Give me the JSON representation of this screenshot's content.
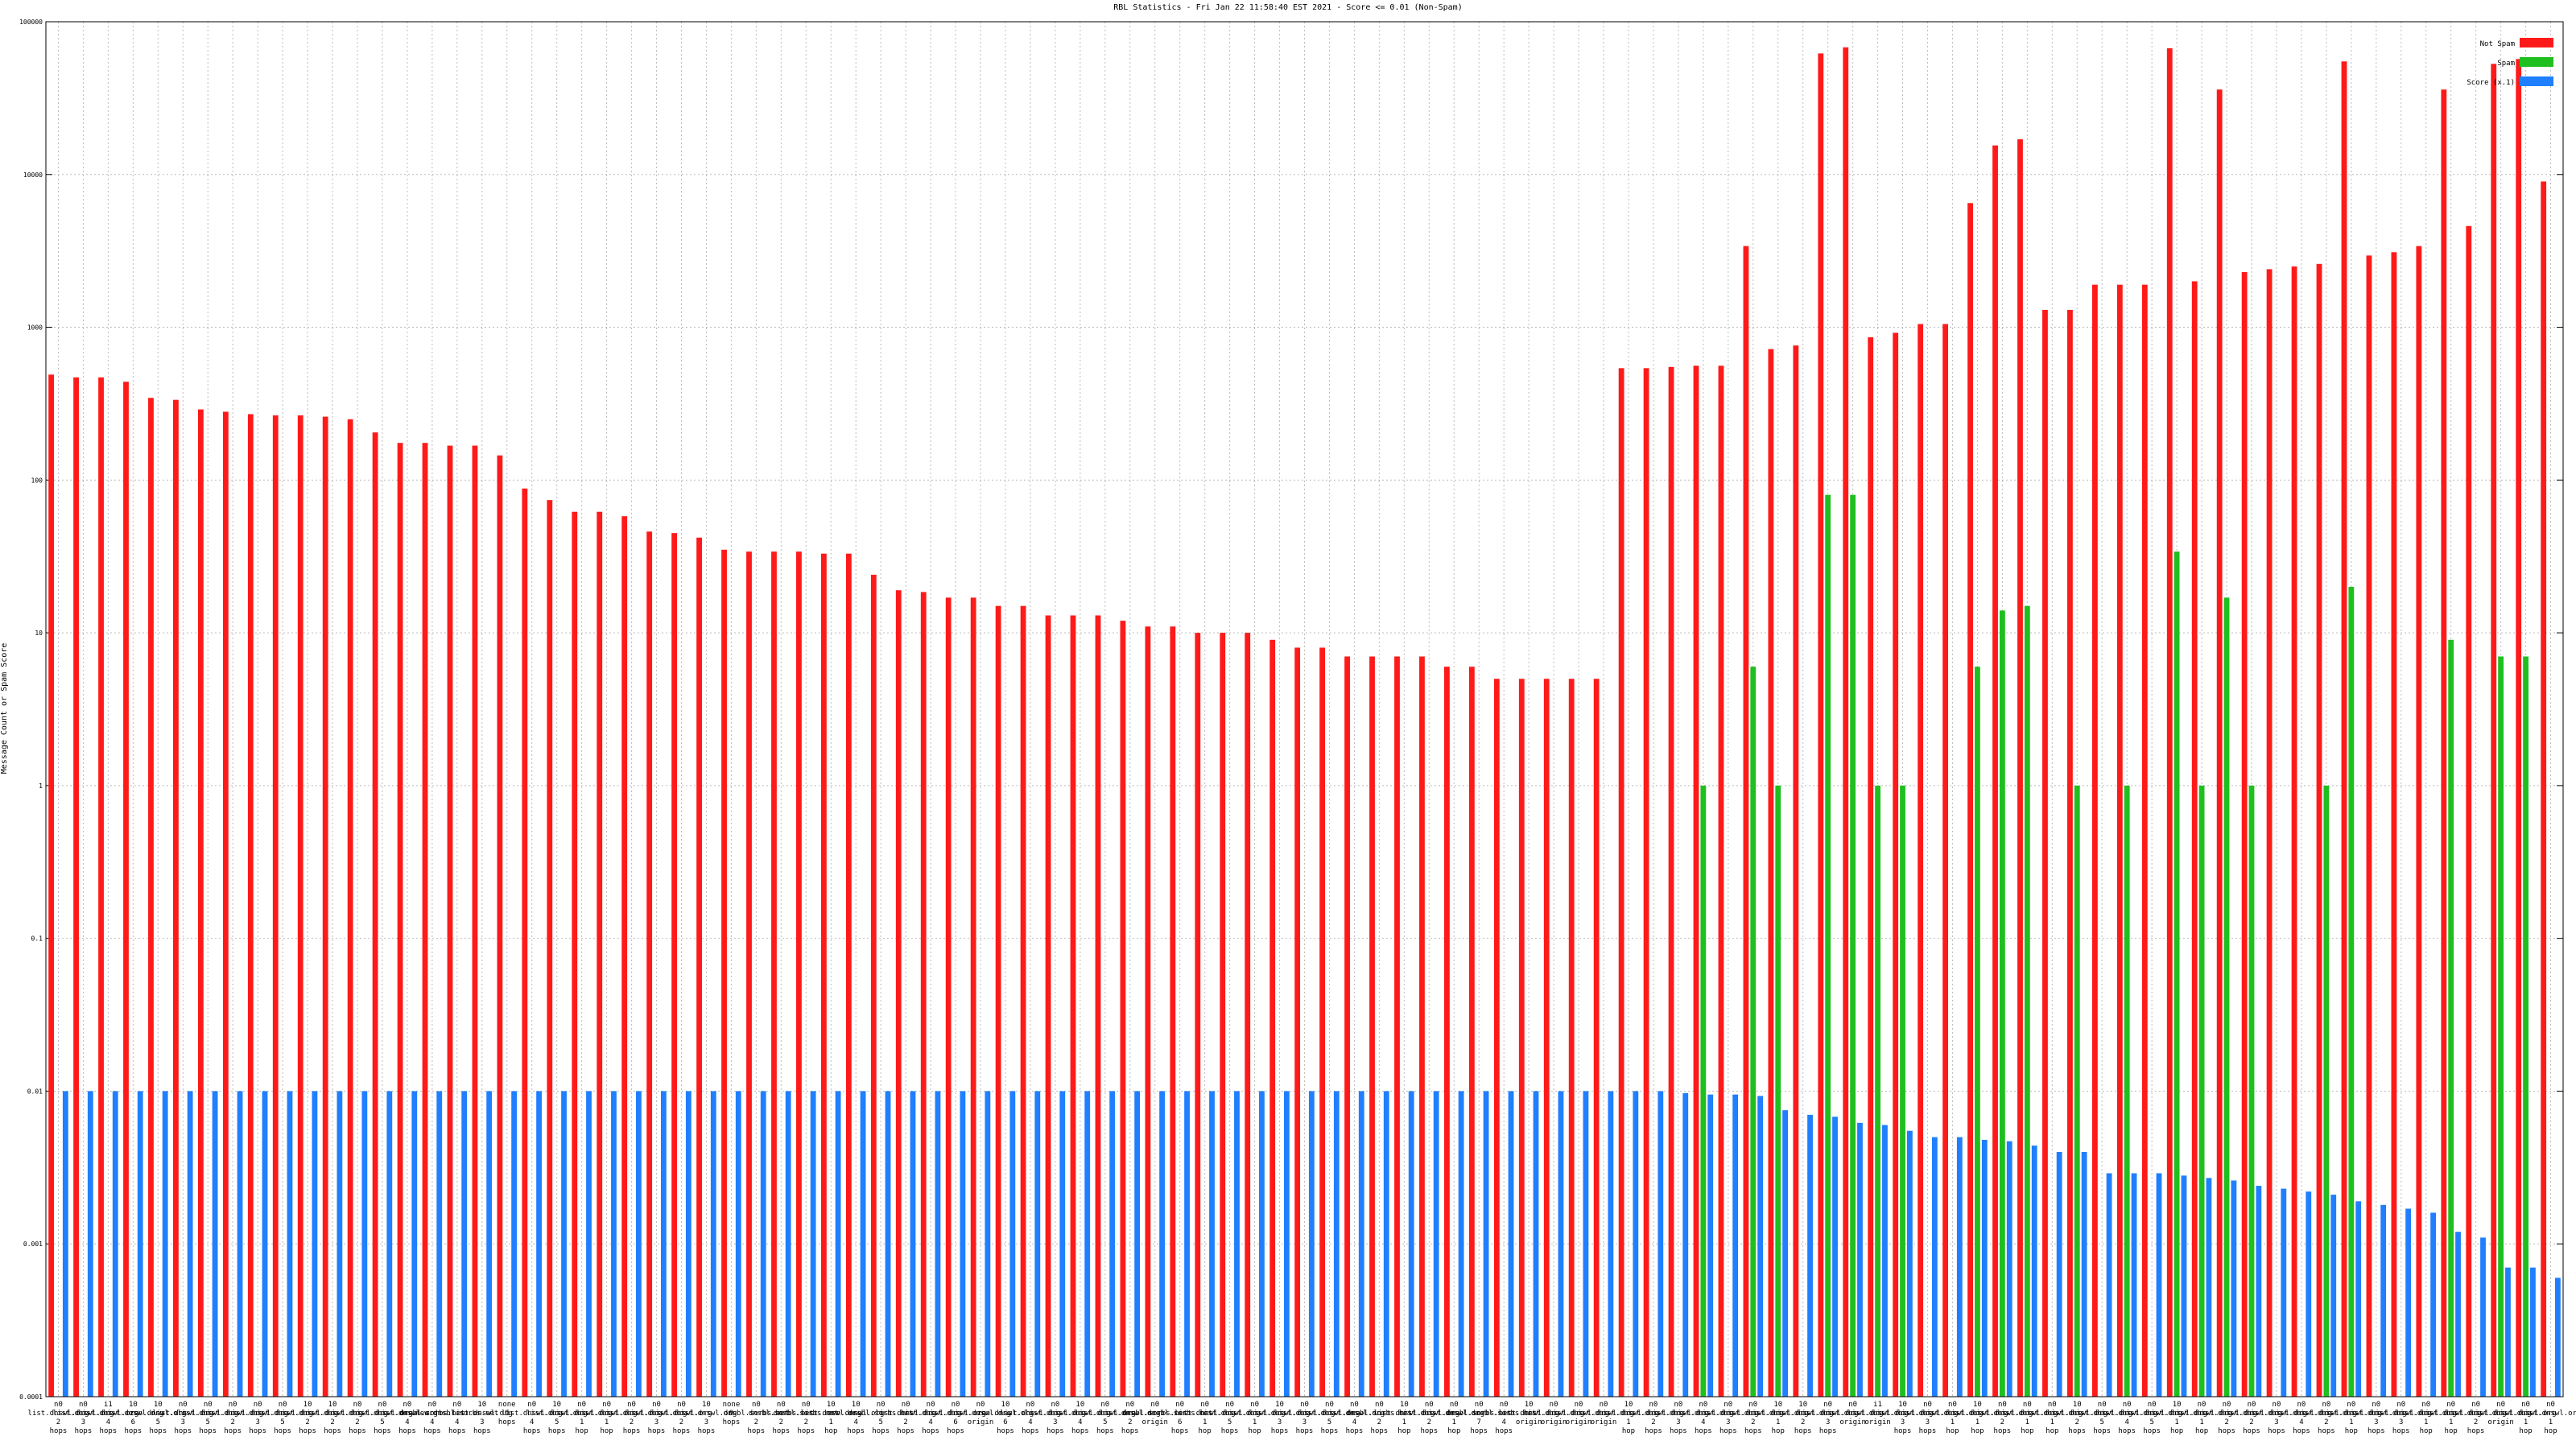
{
  "chart_data": {
    "type": "bar",
    "title": "RBL Statistics - Fri Jan 22 11:58:40 EST 2021 - Score <= 0.01 (Non-Spam)",
    "y_label": "Message Count or Spam Score",
    "log_y": true,
    "grid": true,
    "legend": "top-right",
    "ylim": [
      0.0001,
      100000
    ],
    "yticks": [
      0.0001,
      0.001,
      0.01,
      0.1,
      1,
      10,
      100,
      1000,
      10000,
      100000
    ],
    "categories": [
      "n0 list.dnswl.org 2 hops",
      "n0 list.dnswl.org 3 hops",
      "i1 list.dnswl.org 4 hops",
      "10 list.dnswl.org 6 hops",
      "10 zen.dnswl.org 5 hops",
      "n0 list.dnswl.org 3 hops",
      "n0 list.dnswl.org 5 hops",
      "n0 list.dnswl.org 2 hops",
      "n0 list.dnswl.org 3 hops",
      "n0 list.dnswl.org 5 hops",
      "10 list.dnswl.org 2 hops",
      "10 list.dnswl.org 2 hops",
      "n0 list.dnswl.org 2 hops",
      "n0 list.dnswl.org 5 hops",
      "n0 list.dnswl.org 4 hops",
      "n0 dnsbl.sorbs.net 4 hops",
      "n0 new.dnsbl.sorbs.net 4 hops",
      "10 list.dnswl.org 3 hops",
      "none 9 hops",
      "n0 list.dnswl.org 4 hops",
      "10 list.dnswl.org 5 hops",
      "n0 list.dnswl.org 1 hop",
      "n0 list.dnswl.org 1 hop",
      "n0 list.dnswl.org 2 hops",
      "n0 list.dnswl.org 3 hops",
      "n0 list.dnswl.org 2 hops",
      "10 list.dnswl.org 3 hops",
      "none 9 hops",
      "n0 dnsbl.sorbs.net 2 hops",
      "n0 dnsbl.sorbs.net 2 hops",
      "n0 dnsbl.sorbs.net 2 hops",
      "10 list.dnswl.org 1 hop",
      "10 zen.dnswl.org 4 hops",
      "n0 dnsbl.sorbs.net 5 hops",
      "n0 list.dnswl.org 2 hops",
      "n0 list.dnswl.org 4 hops",
      "n0 list.dnswl.org 6 hops",
      "n0 list.dnswl.org origin",
      "10 zen.dnswl.org 6 hops",
      "n0 list.dnswl.org 4 hops",
      "n0 list.dnswl.org 3 hops",
      "10 list.dnswl.org 4 hops",
      "n0 list.dnswl.org 5 hops",
      "n0 list.dnswl.org 2 hops",
      "n0 dnsbl.sorbs.net origin",
      "n0 dnsbl.sorbs.net 6 hops",
      "n0 list.dnswl.org 1 hop",
      "n0 list.dnswl.org 5 hops",
      "n0 list.dnswl.org 1 hop",
      "10 list.dnswl.org 3 hops",
      "n0 list.dnswl.org 3 hops",
      "n0 list.dnswl.org 5 hops",
      "n0 list.dnswl.org 4 hops",
      "n0 dnsbl.sorbs.net 2 hops",
      "10 list.dnswl.org 1 hop",
      "n0 list.dnswl.org 2 hops",
      "n0 list.dnswl.org 1 hop",
      "n0 dnsbl.sorbs.net 7 hops",
      "n0 dnsbl.sorbs.net 4 hops",
      "10 list.dnswl.org origin",
      "n0 list.dnswl.org origin",
      "n0 list.dnswl.org origin",
      "n0 list.dnswl.org origin",
      "10 list.dnswl.org 1 hop",
      "n0 list.dnswl.org 2 hops",
      "n0 list.dnswl.org 3 hops",
      "n0 list.dnswl.org 4 hops",
      "n0 list.dnswl.org 3 hops",
      "n0 list.dnswl.org 2 hops",
      "10 list.dnswl.org 1 hop",
      "10 list.dnswl.org 2 hops",
      "n0 list.dnswl.org 3 hops",
      "n0 list.dnswl.org origin",
      "i1 list.dnswl.org origin",
      "10 list.dnswl.org 3 hops",
      "n0 list.dnswl.org 3 hops",
      "n0 list.dnswl.org 1 hop",
      "10 list.dnswl.org 1 hop",
      "n0 list.dnswl.org 2 hops",
      "n0 list.dnswl.org 1 hop",
      "n0 list.dnswl.org 1 hop",
      "10 list.dnswl.org 2 hops",
      "n0 list.dnswl.org 5 hops",
      "n0 list.dnswl.org 4 hops",
      "n0 list.dnswl.org 5 hops",
      "10 list.dnswl.org 1 hop",
      "n0 list.dnswl.org 1 hop",
      "n0 list.dnswl.org 2 hops",
      "n0 list.dnswl.org 2 hops",
      "n0 list.dnswl.org 3 hops",
      "n0 list.dnswl.org 4 hops",
      "n0 list.dnswl.org 2 hops",
      "n0 list.dnswl.org 1 hop",
      "n0 list.dnswl.org 3 hops",
      "n0 list.dnswl.org 3 hops",
      "n0 list.dnswl.org 1 hop",
      "n0 list.dnswl.org 1 hop",
      "n0 list.dnswl.org 2 hops",
      "n0 list.dnswl.org origin",
      "n0 list.dnswl.org 1 hop",
      "n0 list.dnswl.org 1 hop"
    ],
    "series": [
      {
        "name": "Not Spam",
        "color": "#ff1a1a",
        "values": [
          490,
          470,
          470,
          440,
          345,
          335,
          290,
          280,
          270,
          265,
          265,
          260,
          250,
          205,
          175,
          175,
          168,
          168,
          145,
          88,
          74,
          62,
          62,
          58,
          46,
          45,
          42,
          35,
          34,
          34,
          34,
          33,
          33,
          24,
          19,
          18.5,
          17,
          17,
          15,
          15,
          13,
          13,
          13,
          12,
          11,
          11,
          10,
          10,
          10,
          9,
          8,
          8,
          7,
          7,
          7,
          7,
          6,
          6,
          5,
          5,
          5,
          5,
          5,
          540,
          540,
          550,
          560,
          560,
          3400,
          720,
          760,
          62000,
          68000,
          860,
          920,
          1050,
          1050,
          6500,
          15500,
          17000,
          1300,
          1300,
          1900,
          1900,
          1900,
          67000,
          2000,
          36000,
          2300,
          2400,
          2500,
          2600,
          55000,
          2950,
          3100,
          3400,
          36000,
          4600,
          53000,
          57000,
          9000
        ]
      },
      {
        "name": "Spam",
        "color": "#1fbf1f",
        "values": [
          null,
          null,
          null,
          null,
          null,
          null,
          null,
          null,
          null,
          null,
          null,
          null,
          null,
          null,
          null,
          null,
          null,
          null,
          null,
          null,
          null,
          null,
          null,
          null,
          null,
          null,
          null,
          null,
          null,
          null,
          null,
          null,
          null,
          null,
          null,
          null,
          null,
          null,
          null,
          null,
          null,
          null,
          null,
          null,
          null,
          null,
          null,
          null,
          null,
          null,
          null,
          null,
          null,
          null,
          null,
          null,
          null,
          null,
          null,
          null,
          null,
          null,
          null,
          null,
          null,
          null,
          1,
          null,
          6,
          1,
          null,
          80,
          80,
          1,
          1,
          null,
          null,
          6,
          14,
          15,
          null,
          1,
          null,
          1,
          null,
          34,
          1,
          17,
          1,
          null,
          null,
          1,
          20,
          null,
          null,
          null,
          9,
          null,
          7,
          7,
          null
        ]
      },
      {
        "name": "Score (x.1)",
        "color": "#1f7fff",
        "values": [
          0.01,
          0.01,
          0.01,
          0.01,
          0.01,
          0.01,
          0.01,
          0.01,
          0.01,
          0.01,
          0.01,
          0.01,
          0.01,
          0.01,
          0.01,
          0.01,
          0.01,
          0.01,
          0.01,
          0.01,
          0.01,
          0.01,
          0.01,
          0.01,
          0.01,
          0.01,
          0.01,
          0.01,
          0.01,
          0.01,
          0.01,
          0.01,
          0.01,
          0.01,
          0.01,
          0.01,
          0.01,
          0.01,
          0.01,
          0.01,
          0.01,
          0.01,
          0.01,
          0.01,
          0.01,
          0.01,
          0.01,
          0.01,
          0.01,
          0.01,
          0.01,
          0.01,
          0.01,
          0.01,
          0.01,
          0.01,
          0.01,
          0.01,
          0.01,
          0.01,
          0.01,
          0.01,
          0.01,
          0.01,
          0.01,
          0.0097,
          0.0095,
          0.0095,
          0.0093,
          0.0075,
          0.007,
          0.0068,
          0.0062,
          0.006,
          0.0055,
          0.005,
          0.005,
          0.0048,
          0.0047,
          0.0044,
          0.004,
          0.004,
          0.0029,
          0.0029,
          0.0029,
          0.0028,
          0.0027,
          0.0026,
          0.0024,
          0.0023,
          0.0022,
          0.0021,
          0.0019,
          0.0018,
          0.0017,
          0.0016,
          0.0012,
          0.0011,
          0.0007,
          0.0007,
          0.0006
        ]
      }
    ]
  }
}
